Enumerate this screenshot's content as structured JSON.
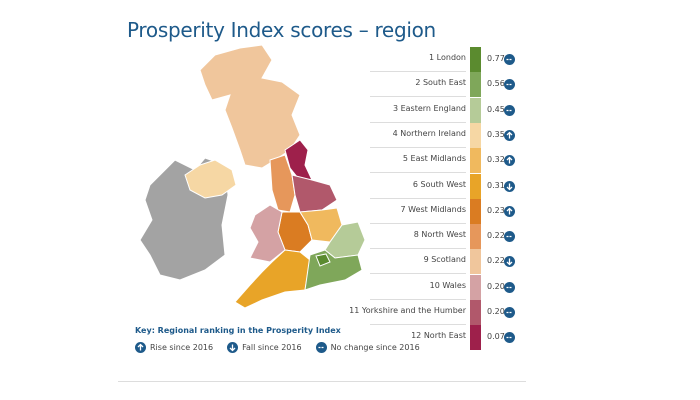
{
  "title": "Prosperity Index scores – region",
  "chart_data": {
    "type": "choropleth-ranking",
    "title": "Prosperity Index scores – region",
    "regions": [
      {
        "rank": "1",
        "name": "London",
        "value": 0.77,
        "change": "no-change",
        "color": "#5b8b2f"
      },
      {
        "rank": "2",
        "name": "South East",
        "value": 0.56,
        "change": "no-change",
        "color": "#7fa75a"
      },
      {
        "rank": "3",
        "name": "Eastern England",
        "value": 0.45,
        "change": "no-change",
        "color": "#b5cb98"
      },
      {
        "rank": "4",
        "name": "Northern Ireland",
        "value": 0.35,
        "change": "rise",
        "color": "#f6d7a4"
      },
      {
        "rank": "5",
        "name": "East Midlands",
        "value": 0.32,
        "change": "rise",
        "color": "#f0b95e"
      },
      {
        "rank": "6",
        "name": "South West",
        "value": 0.31,
        "change": "fall",
        "color": "#e8a428"
      },
      {
        "rank": "7",
        "name": "West Midlands",
        "value": 0.23,
        "change": "rise",
        "color": "#da7c22"
      },
      {
        "rank": "8",
        "name": "North West",
        "value": 0.22,
        "change": "no-change",
        "color": "#e6975b"
      },
      {
        "rank": "9",
        "name": "Scotland",
        "value": 0.22,
        "change": "fall",
        "color": "#f0c69c"
      },
      {
        "rank": "10",
        "name": "Wales",
        "value": 0.2,
        "change": "no-change",
        "color": "#d4a2a4"
      },
      {
        "rank": "11",
        "name": "Yorkshire and the Humber",
        "value": 0.2,
        "change": "no-change",
        "color": "#b1586b"
      },
      {
        "rank": "12",
        "name": "North East",
        "value": 0.07,
        "change": "no-change",
        "color": "#9e204b"
      }
    ],
    "unranked_color": "#a3a3a3"
  },
  "key": {
    "title": "Key: Regional ranking in the Prosperity Index",
    "rise": "Rise since 2016",
    "fall": "Fall since 2016",
    "nochange": "No change since 2016"
  },
  "icon_color": "#1e5a8a"
}
